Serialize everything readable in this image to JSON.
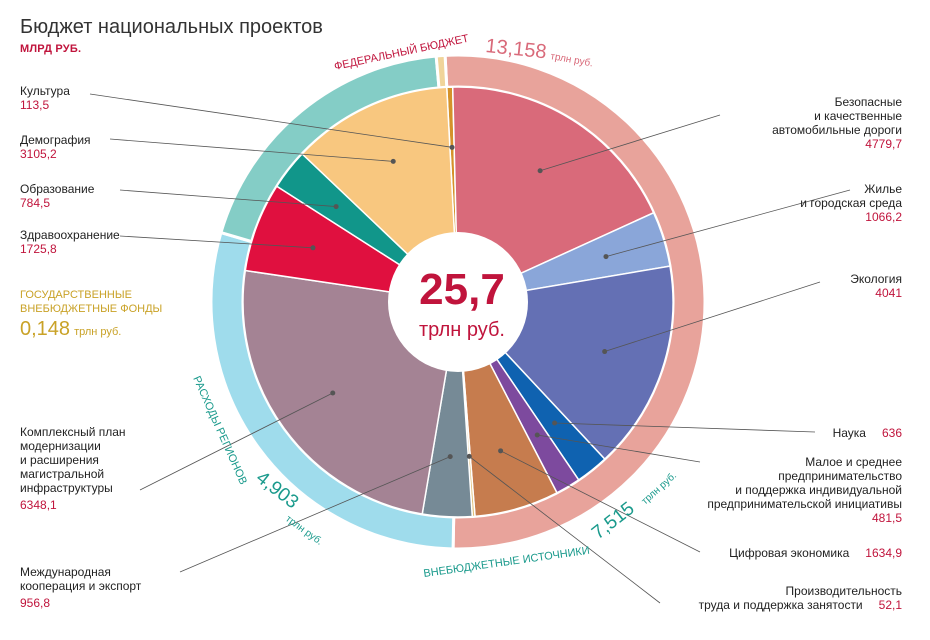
{
  "title": "Бюджет национальных проектов",
  "unit": "МЛРД РУБ.",
  "colors": {
    "federal_ring": "#e8a39b",
    "regions_ring": "#84cdc6",
    "offbudget_ring": "#9fdcec",
    "red_text": "#c0143c",
    "gold_text": "#c9a227",
    "teal_text": "#1a9a8c"
  },
  "center": {
    "value": "25,7",
    "unit": "трлн руб."
  },
  "rings": {
    "federal": {
      "label": "ФЕДЕРАЛЬНЫЙ БЮДЖЕТ",
      "value": "13,158",
      "unit": "трлн руб."
    },
    "regions": {
      "label": "РАСХОДЫ РЕГИОНОВ",
      "value": "4,903",
      "unit": "трлн руб."
    },
    "offbudget": {
      "label": "ВНЕБЮДЖЕТНЫЕ ИСТОЧНИКИ",
      "value": "7,515",
      "unit": "трлн руб."
    },
    "funds": {
      "label": "ГОСУДАРСТВЕННЫЕ ВНЕБЮДЖЕТНЫЕ ФОНДЫ",
      "value": "0,148",
      "unit": "трлн руб."
    }
  },
  "labels": {
    "culture": {
      "name": "Культура",
      "value": "113,5"
    },
    "demography": {
      "name": "Демография",
      "value": "3105,2"
    },
    "education": {
      "name": "Образование",
      "value": "784,5"
    },
    "health": {
      "name": "Здравоохранение",
      "value": "1725,8"
    },
    "roads": {
      "line1": "Безопасные",
      "line2": "и качественные",
      "line3": "автомобильные дороги",
      "value": "4779,7"
    },
    "housing": {
      "line1": "Жилье",
      "line2": "и городская среда",
      "value": "1066,2"
    },
    "ecology": {
      "name": "Экология",
      "value": "4041"
    },
    "science": {
      "name": "Наука",
      "value": "636"
    },
    "sme": {
      "line1": "Малое и среднее",
      "line2": "предпринимательство",
      "line3": "и поддержка индивидуальной",
      "line4": "предпринимательской инициативы",
      "value": "481,5"
    },
    "digital": {
      "name": "Цифровая экономика",
      "value": "1634,9"
    },
    "productivity": {
      "line1": "Производительность",
      "line2": "труда и поддержка занятости",
      "value": "52,1"
    },
    "infra": {
      "line1": "Комплексный план",
      "line2": "модернизации",
      "line3": "и расширения",
      "line4": "магистральной",
      "line5": "инфраструктуры",
      "value": "6348,1"
    },
    "export": {
      "line1": "Международная",
      "line2": "кооперация и экспорт",
      "value": "956,8"
    }
  },
  "chart_data": {
    "type": "pie",
    "title": "Бюджет национальных проектов",
    "unit": "млрд руб.",
    "total": "25,7 трлн руб.",
    "slices": [
      {
        "name": "Культура",
        "value": 113.5,
        "color": "#d4922a"
      },
      {
        "name": "Безопасные и качественные автомобильные дороги",
        "value": 4779.7,
        "color": "#d96a7a"
      },
      {
        "name": "Жилье и городская среда",
        "value": 1066.2,
        "color": "#8aa6d9"
      },
      {
        "name": "Экология",
        "value": 4041,
        "color": "#6470b4"
      },
      {
        "name": "Наука",
        "value": 636,
        "color": "#0f62b0"
      },
      {
        "name": "Малое и среднее предпринимательство и поддержка индивидуальной предпринимательской инициативы",
        "value": 481.5,
        "color": "#7d4a9e"
      },
      {
        "name": "Цифровая экономика",
        "value": 1634.9,
        "color": "#c67c4e"
      },
      {
        "name": "Производительность труда и поддержка занятости",
        "value": 52.1,
        "color": "#e0c07a"
      },
      {
        "name": "Международная кооперация и экспорт",
        "value": 956.8,
        "color": "#768a96"
      },
      {
        "name": "Комплексный план модернизации и расширения магистральной инфраструктуры",
        "value": 6348.1,
        "color": "#a48394"
      },
      {
        "name": "Здравоохранение",
        "value": 1725.8,
        "color": "#e0103f"
      },
      {
        "name": "Образование",
        "value": 784.5,
        "color": "#11968a"
      },
      {
        "name": "Демография",
        "value": 3105.2,
        "color": "#f8c77f"
      }
    ],
    "outer_ring": [
      {
        "name": "Федеральный бюджет",
        "value": 13.158
      },
      {
        "name": "Внебюджетные источники",
        "value": 7.515
      },
      {
        "name": "Расходы регионов",
        "value": 4.903
      },
      {
        "name": "Государственные внебюджетные фонды",
        "value": 0.148
      }
    ]
  }
}
